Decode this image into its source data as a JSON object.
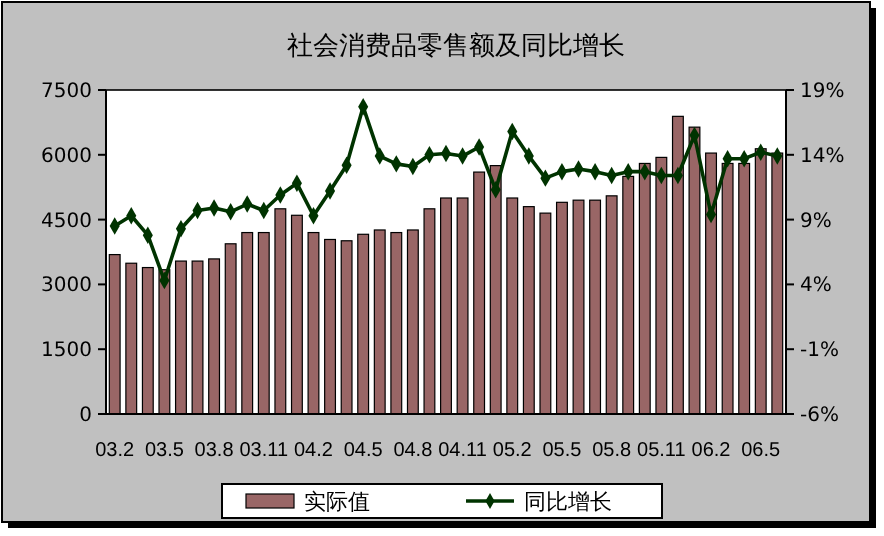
{
  "chart_data": {
    "type": "bar",
    "title": "社会消费品零售额及同比增长",
    "categories": [
      "03.2",
      null,
      null,
      "03.5",
      null,
      null,
      "03.8",
      null,
      null,
      "03.11",
      null,
      null,
      "04.2",
      null,
      null,
      "04.5",
      null,
      null,
      "04.8",
      null,
      null,
      "04.11",
      null,
      null,
      "05.2",
      null,
      null,
      "05.5",
      null,
      null,
      "05.8",
      null,
      null,
      "05.11",
      null,
      null,
      "06.2",
      null,
      null,
      "06.5",
      null
    ],
    "series": [
      {
        "name": "实际值",
        "color": "#996666",
        "values": [
          3690,
          3490,
          3390,
          3340,
          3540,
          3540,
          3590,
          3940,
          4200,
          4200,
          4750,
          4600,
          4200,
          4040,
          4010,
          4160,
          4260,
          4200,
          4260,
          4750,
          5000,
          5000,
          5600,
          5750,
          5000,
          4800,
          4650,
          4900,
          4950,
          4950,
          5050,
          5500,
          5800,
          5940,
          6890,
          6640,
          6040,
          5800,
          5800,
          6140,
          6040
        ]
      },
      {
        "name": "同比增长",
        "type": "line",
        "axis": "y2",
        "color": "#003300",
        "marker": "diamond",
        "values": [
          8.5,
          9.3,
          7.8,
          4.3,
          8.3,
          9.7,
          9.9,
          9.6,
          10.2,
          9.7,
          10.9,
          11.8,
          9.3,
          11.2,
          13.2,
          17.7,
          13.9,
          13.3,
          13.1,
          14.0,
          14.1,
          13.9,
          14.6,
          11.3,
          15.8,
          13.9,
          12.2,
          12.7,
          12.9,
          12.7,
          12.4,
          12.7,
          12.7,
          12.4,
          12.4,
          15.5,
          9.4,
          13.7,
          13.7,
          14.2,
          13.9
        ]
      }
    ],
    "ylim": [
      0,
      7500
    ],
    "yticks": [
      0,
      1500,
      3000,
      4500,
      6000,
      7500
    ],
    "y2lim": [
      -6,
      19
    ],
    "y2ticks": [
      {
        "value": -6,
        "label": "-6%"
      },
      {
        "value": -1,
        "label": "-1%"
      },
      {
        "value": 4,
        "label": "4%"
      },
      {
        "value": 9,
        "label": "9%"
      },
      {
        "value": 14,
        "label": "14%"
      },
      {
        "value": 19,
        "label": "19%"
      }
    ],
    "grid": false,
    "legend": "bottom"
  }
}
